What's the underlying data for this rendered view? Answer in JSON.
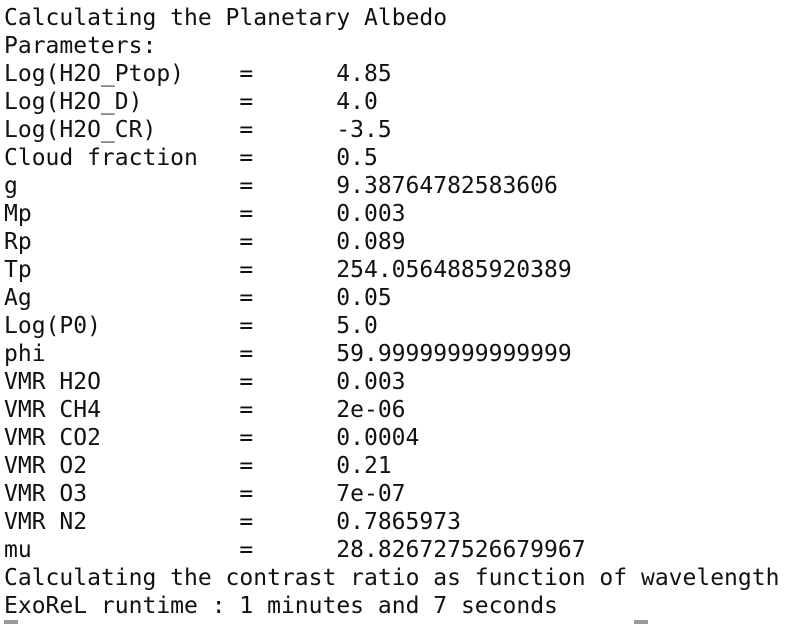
{
  "header": {
    "title": "Calculating the Planetary Albedo",
    "subtitle": "Parameters:"
  },
  "separator": "=",
  "parameters": [
    {
      "name": "Log(H2O_Ptop)",
      "value": "4.85"
    },
    {
      "name": "Log(H2O_D)",
      "value": "4.0"
    },
    {
      "name": "Log(H2O_CR)",
      "value": "-3.5"
    },
    {
      "name": "Cloud fraction",
      "value": "0.5"
    },
    {
      "name": "g",
      "value": "9.38764782583606"
    },
    {
      "name": "Mp",
      "value": "0.003"
    },
    {
      "name": "Rp",
      "value": "0.089"
    },
    {
      "name": "Tp",
      "value": "254.0564885920389"
    },
    {
      "name": "Ag",
      "value": "0.05"
    },
    {
      "name": "Log(P0)",
      "value": "5.0"
    },
    {
      "name": "phi",
      "value": "59.99999999999999"
    },
    {
      "name": "VMR H2O",
      "value": "0.003"
    },
    {
      "name": "VMR CH4",
      "value": "2e-06"
    },
    {
      "name": "VMR CO2",
      "value": "0.0004"
    },
    {
      "name": "VMR O2",
      "value": "0.21"
    },
    {
      "name": "VMR O3",
      "value": "7e-07"
    },
    {
      "name": "VMR N2",
      "value": "0.7865973"
    },
    {
      "name": "mu",
      "value": "28.826727526679967"
    }
  ],
  "footer": [
    "Calculating the contrast ratio as function of wavelength",
    "ExoReL runtime : 1 minutes and 7 seconds"
  ]
}
